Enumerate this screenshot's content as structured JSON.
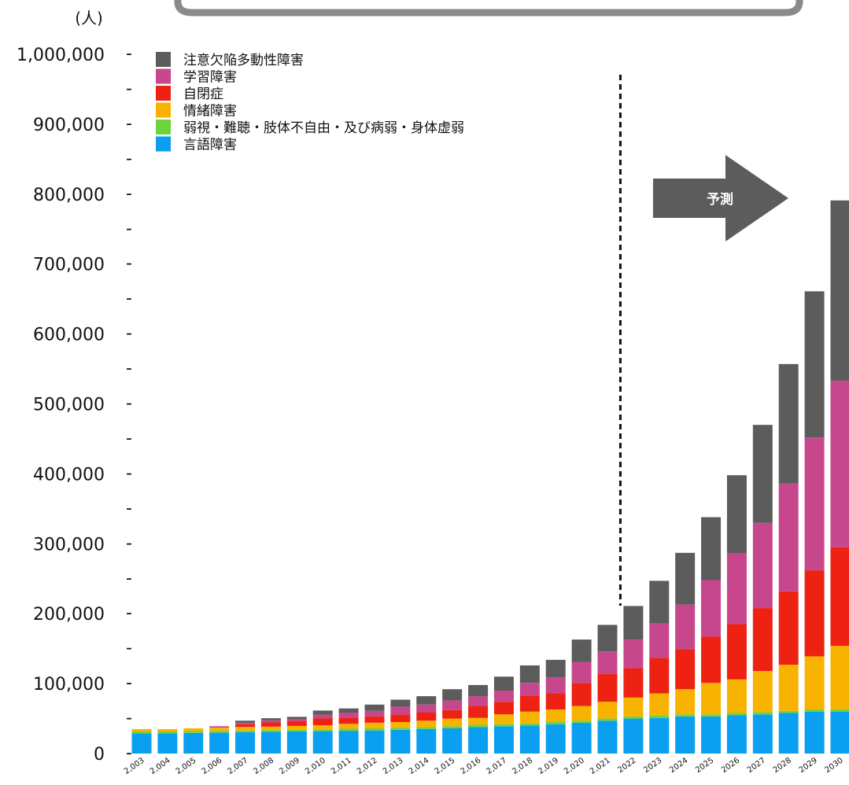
{
  "chart_data": {
    "type": "bar",
    "stacked": true,
    "unit_label": "(人)",
    "title": "",
    "xlabel": "",
    "ylabel": "",
    "ylim": [
      0,
      1000000
    ],
    "y_tick_values": [
      0,
      100000,
      200000,
      300000,
      400000,
      500000,
      600000,
      700000,
      800000,
      900000,
      1000000
    ],
    "y_tick_labels": [
      "0",
      "100,000",
      "200,000",
      "300,000",
      "400,000",
      "500,000",
      "600,000",
      "700,000",
      "800,000",
      "900,000",
      "1,000,000"
    ],
    "y_minor_marker": "-",
    "grid": false,
    "legend_position": "top-left",
    "categories": [
      "2,003",
      "2,004",
      "2,005",
      "2,006",
      "2,007",
      "2,008",
      "2,009",
      "2,010",
      "2,011",
      "2,012",
      "2,013",
      "2,014",
      "2,015",
      "2,016",
      "2,017",
      "2,018",
      "2,019",
      "2,020",
      "2,021",
      "2022",
      "2023",
      "2024",
      "2025",
      "2026",
      "2027",
      "2028",
      "2029",
      "2030"
    ],
    "forecast": {
      "label": "予測",
      "divider_after_category": "2,021"
    },
    "series": [
      {
        "name": "言語障害",
        "color": "#0a9ff0",
        "values": [
          29000,
          29000,
          29500,
          30000,
          30500,
          31000,
          31500,
          32000,
          32500,
          33000,
          34000,
          35000,
          36000,
          38000,
          39000,
          40000,
          42000,
          44000,
          47000,
          50000,
          51000,
          53000,
          53000,
          55000,
          56000,
          58000,
          60000,
          60000
        ]
      },
      {
        "name": "弱視・難聴・肢体不自由・及び病弱・身体虚弱",
        "color": "#6cd33c",
        "values": [
          2500,
          2500,
          2500,
          2500,
          2500,
          2500,
          2500,
          2500,
          3000,
          3000,
          3000,
          3000,
          3000,
          3000,
          3000,
          3000,
          3000,
          3000,
          3000,
          3000,
          3000,
          3000,
          3000,
          3000,
          3000,
          3000,
          3000,
          3000
        ]
      },
      {
        "name": "情緒障害",
        "color": "#f8b300",
        "values": [
          3500,
          3500,
          4000,
          4500,
          5000,
          5000,
          5500,
          6000,
          7000,
          8000,
          8000,
          9000,
          11000,
          10000,
          14000,
          17000,
          18000,
          21000,
          24000,
          27000,
          32000,
          36000,
          45000,
          48000,
          59000,
          66000,
          76000,
          91000
        ]
      },
      {
        "name": "自閉症",
        "color": "#ee2212",
        "values": [
          0,
          0,
          0,
          0,
          4000,
          6000,
          7000,
          10000,
          9000,
          9000,
          11000,
          12000,
          12000,
          17000,
          18000,
          23000,
          23000,
          33000,
          40000,
          42000,
          51000,
          57000,
          66000,
          79000,
          90000,
          105000,
          123000,
          141000
        ]
      },
      {
        "name": "学習障害",
        "color": "#c7478d",
        "values": [
          0,
          0,
          0,
          2000,
          2000,
          3000,
          3000,
          5000,
          7000,
          8000,
          11000,
          11000,
          14000,
          14000,
          16000,
          18000,
          23000,
          30000,
          32000,
          41000,
          49000,
          64000,
          81000,
          101000,
          122000,
          154000,
          190000,
          238000
        ]
      },
      {
        "name": "注意欠陥多動性障害",
        "color": "#5c5c5c",
        "values": [
          0,
          0,
          0,
          0,
          3000,
          3000,
          3000,
          6000,
          6000,
          9000,
          10000,
          12000,
          16000,
          16000,
          20000,
          25000,
          25000,
          32000,
          38000,
          48000,
          61000,
          74000,
          90000,
          112000,
          140000,
          171000,
          209000,
          258000
        ]
      }
    ]
  }
}
